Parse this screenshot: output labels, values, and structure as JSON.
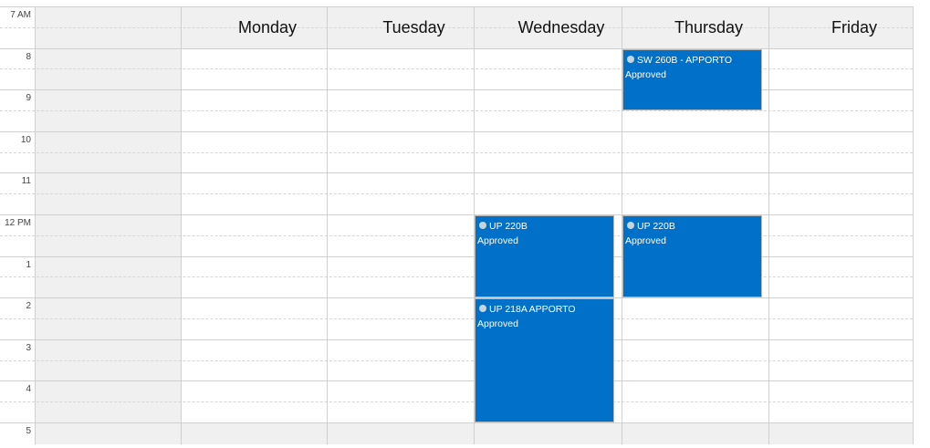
{
  "times": [
    "7 AM",
    "8",
    "9",
    "10",
    "11",
    "12 PM",
    "1",
    "2",
    "3",
    "4",
    "5"
  ],
  "days": [
    "Monday",
    "Tuesday",
    "Wednesday",
    "Thursday",
    "Friday"
  ],
  "events": [
    {
      "day": "Thursday",
      "title": "SW 260B - APPORTO",
      "status": "Approved",
      "start": "8:00",
      "end": "9:30",
      "icon": "recurring-icon"
    },
    {
      "day": "Wednesday",
      "title": "UP 220B",
      "status": "Approved",
      "start": "12:00",
      "end": "14:00",
      "icon": "recurring-icon"
    },
    {
      "day": "Thursday",
      "title": "UP 220B",
      "status": "Approved",
      "start": "12:00",
      "end": "14:00",
      "icon": "recurring-icon"
    },
    {
      "day": "Wednesday",
      "title": "UP 218A APPORTO",
      "status": "Approved",
      "start": "14:00",
      "end": "17:00",
      "icon": "recurring-icon"
    }
  ],
  "colors": {
    "event": "#0070c8",
    "nonworking": "#f0f0f0"
  }
}
